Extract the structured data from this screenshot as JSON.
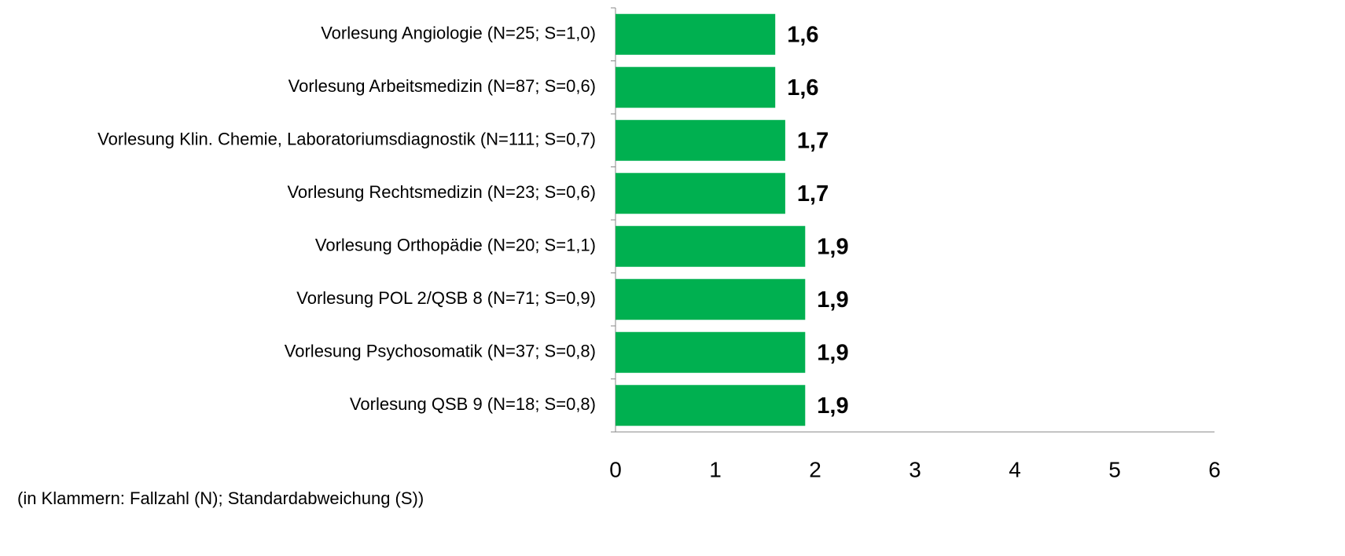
{
  "chart_data": {
    "type": "barh",
    "categories": [
      "Vorlesung Angiologie (N=25; S=1,0)",
      "Vorlesung Arbeitsmedizin (N=87; S=0,6)",
      "Vorlesung Klin. Chemie, Laboratoriumsdiagnostik (N=111; S=0,7)",
      "Vorlesung Rechtsmedizin (N=23; S=0,6)",
      "Vorlesung Orthopädie (N=20; S=1,1)",
      "Vorlesung POL 2/QSB 8 (N=71; S=0,9)",
      "Vorlesung Psychosomatik (N=37; S=0,8)",
      "Vorlesung QSB 9 (N=18; S=0,8)"
    ],
    "values": [
      1.6,
      1.6,
      1.7,
      1.7,
      1.9,
      1.9,
      1.9,
      1.9
    ],
    "value_labels": [
      "1,6",
      "1,6",
      "1,7",
      "1,7",
      "1,9",
      "1,9",
      "1,9",
      "1,9"
    ],
    "color": "#00b050",
    "xlim": [
      0,
      6
    ],
    "xticks": [
      0,
      1,
      2,
      3,
      4,
      5,
      6
    ],
    "grid": false,
    "annotation": "(in Klammern: Fallzahl (N); Standardabweichung (S))"
  }
}
